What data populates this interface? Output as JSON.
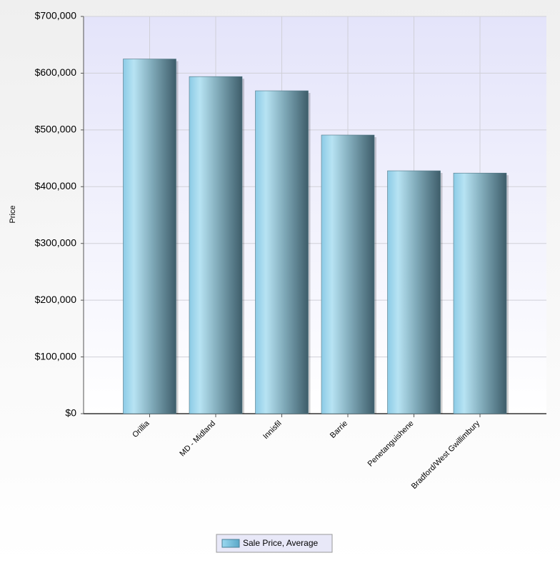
{
  "chart_data": {
    "type": "bar",
    "y_label": "Price",
    "categories": [
      "Orillia",
      "MD - Midland",
      "Innisfil",
      "Barrie",
      "Penetanguishene",
      "Bradford/West Gwillimbury"
    ],
    "series": [
      {
        "name": "Sale Price, Average",
        "color": "#87d0ec",
        "values": [
          625000,
          594000,
          569000,
          491000,
          428000,
          424000
        ]
      }
    ],
    "ylim": [
      0,
      700000
    ],
    "yticks": [
      {
        "value": 0,
        "label": "$0"
      },
      {
        "value": 100000,
        "label": "$100,000"
      },
      {
        "value": 200000,
        "label": "$200,000"
      },
      {
        "value": 300000,
        "label": "$300,000"
      },
      {
        "value": 400000,
        "label": "$400,000"
      },
      {
        "value": 500000,
        "label": "$500,000"
      },
      {
        "value": 600000,
        "label": "$600,000"
      },
      {
        "value": 700000,
        "label": "$700,000"
      }
    ],
    "grid": true
  }
}
